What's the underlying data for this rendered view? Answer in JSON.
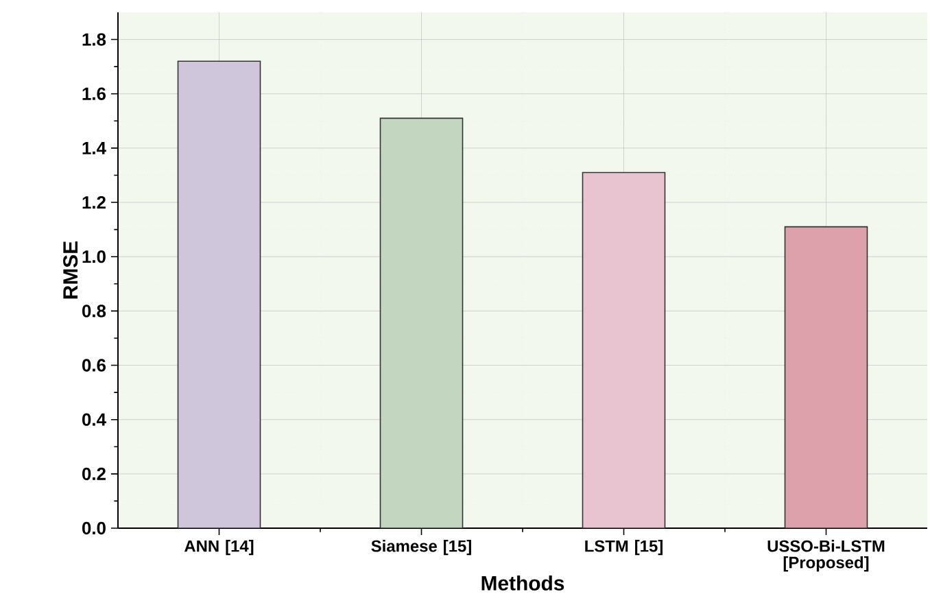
{
  "chart_data": {
    "type": "bar",
    "xlabel": "Methods",
    "ylabel": "RMSE",
    "categories": [
      "ANN [14]",
      "Siamese [15]",
      "LSTM [15]",
      "USSO-Bi-LSTM [Proposed]"
    ],
    "values": [
      1.72,
      1.51,
      1.31,
      1.11
    ],
    "colors": [
      "#cfc6dc",
      "#c3d6bf",
      "#e8c3d0",
      "#dca1ab"
    ],
    "ylim": [
      0,
      1.9
    ],
    "yticks": [
      {
        "value": 0,
        "label": "0.0"
      },
      0.2,
      0.4,
      0.6,
      0.8,
      {
        "value": 1,
        "label": "1.0"
      },
      1.2,
      1.4,
      1.6,
      1.8
    ],
    "grid": true
  }
}
